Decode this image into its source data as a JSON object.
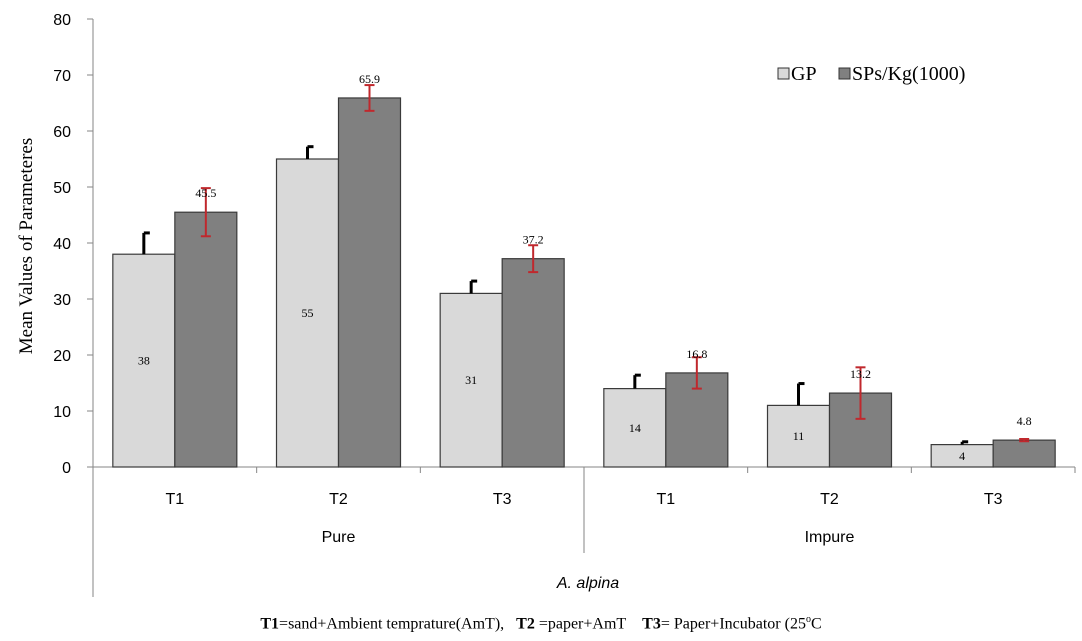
{
  "chart_data": {
    "type": "bar",
    "ylabel": "Mean Values of  Parameteres",
    "xlabel": "A. alpina",
    "ylim": [
      0,
      80
    ],
    "yticks": [
      0,
      10,
      20,
      30,
      40,
      50,
      60,
      70,
      80
    ],
    "grid": false,
    "legend_position": "top-right",
    "groups": [
      {
        "label": "Pure",
        "categories": [
          "T1",
          "T2",
          "T3"
        ]
      },
      {
        "label": "Impure",
        "categories": [
          "T1",
          "T2",
          "T3"
        ]
      }
    ],
    "series": [
      {
        "name": "GP",
        "color": "#d9d9d9",
        "values": [
          38,
          55,
          31,
          14,
          11,
          4
        ],
        "labels": [
          "38",
          "55",
          "31",
          "14",
          "11",
          "4"
        ],
        "error": [
          3.8,
          2.2,
          2.2,
          2.4,
          3.9,
          0.5
        ],
        "error_color": "#000000"
      },
      {
        "name": "SPs/Kg(1000)",
        "color": "#808080",
        "values": [
          45.5,
          65.9,
          37.2,
          16.8,
          13.2,
          4.8
        ],
        "labels": [
          "45.5",
          "65.9",
          "37.2",
          "16.8",
          "13.2",
          "4.8"
        ],
        "error": [
          4.3,
          2.3,
          2.4,
          2.8,
          4.6,
          0.2
        ],
        "error_color": "#c0282d"
      }
    ]
  },
  "footnote": {
    "t1_key": "T1",
    "t1_text": "=sand+Ambient  temprature(AmT),",
    "t2_key": "T2",
    "t2_text": " =paper+AmT",
    "t3_key": "T3",
    "t3_text": "= Paper+Incubator  (25",
    "t3_deg": "o",
    "t3_unit": "C"
  }
}
